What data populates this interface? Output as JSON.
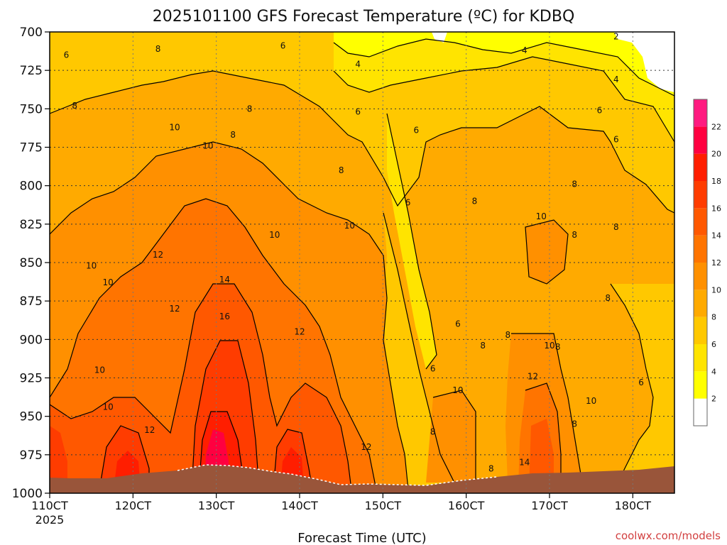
{
  "chart_data": {
    "type": "heatmap",
    "title": "2025101100 GFS Forecast Temperature (ºC) for KDBQ",
    "xlabel": "Forecast Time (UTC)",
    "ylabel": "",
    "credit": "coolwx.com/models",
    "x_ticks": [
      "110CT",
      "120CT",
      "130CT",
      "140CT",
      "150CT",
      "160CT",
      "170CT",
      "180CT"
    ],
    "x_tick_year": "2025",
    "y_ticks": [
      700,
      725,
      750,
      775,
      800,
      825,
      850,
      875,
      900,
      925,
      950,
      975,
      1000
    ],
    "y_range": [
      700,
      1000
    ],
    "x_range_days": [
      11.0,
      18.5
    ],
    "grid": true,
    "colorbar": {
      "ticks": [
        2,
        4,
        6,
        8,
        10,
        12,
        14,
        16,
        18,
        20,
        22
      ],
      "colors": [
        "#ffffff",
        "#ffff00",
        "#ffe400",
        "#ffc800",
        "#ffaa00",
        "#ff9000",
        "#ff7400",
        "#ff5800",
        "#ff3c00",
        "#ff1e00",
        "#ff0040",
        "#ff1a80"
      ]
    },
    "contour_labels": [
      {
        "day": 11.2,
        "p": 715,
        "v": "6"
      },
      {
        "day": 12.3,
        "p": 711,
        "v": "8"
      },
      {
        "day": 13.8,
        "p": 709,
        "v": "6"
      },
      {
        "day": 14.7,
        "p": 721,
        "v": "4"
      },
      {
        "day": 16.7,
        "p": 712,
        "v": "4"
      },
      {
        "day": 17.8,
        "p": 703,
        "v": "2"
      },
      {
        "day": 17.8,
        "p": 731,
        "v": "4"
      },
      {
        "day": 11.3,
        "p": 748,
        "v": "8"
      },
      {
        "day": 12.5,
        "p": 762,
        "v": "10"
      },
      {
        "day": 13.4,
        "p": 750,
        "v": "8"
      },
      {
        "day": 13.2,
        "p": 767,
        "v": "8"
      },
      {
        "day": 12.9,
        "p": 774,
        "v": "10"
      },
      {
        "day": 14.7,
        "p": 752,
        "v": "6"
      },
      {
        "day": 15.4,
        "p": 764,
        "v": "6"
      },
      {
        "day": 17.6,
        "p": 751,
        "v": "6"
      },
      {
        "day": 17.8,
        "p": 770,
        "v": "6"
      },
      {
        "day": 14.5,
        "p": 790,
        "v": "8"
      },
      {
        "day": 15.3,
        "p": 811,
        "v": "6"
      },
      {
        "day": 16.1,
        "p": 810,
        "v": "8"
      },
      {
        "day": 17.3,
        "p": 799,
        "v": "8"
      },
      {
        "day": 16.9,
        "p": 820,
        "v": "10"
      },
      {
        "day": 17.3,
        "p": 832,
        "v": "8"
      },
      {
        "day": 17.8,
        "p": 827,
        "v": "8"
      },
      {
        "day": 13.7,
        "p": 832,
        "v": "10"
      },
      {
        "day": 14.6,
        "p": 826,
        "v": "10"
      },
      {
        "day": 12.3,
        "p": 845,
        "v": "12"
      },
      {
        "day": 11.5,
        "p": 852,
        "v": "10"
      },
      {
        "day": 11.7,
        "p": 863,
        "v": "10"
      },
      {
        "day": 12.5,
        "p": 880,
        "v": "12"
      },
      {
        "day": 13.1,
        "p": 861,
        "v": "14"
      },
      {
        "day": 13.1,
        "p": 885,
        "v": "16"
      },
      {
        "day": 14.0,
        "p": 895,
        "v": "12"
      },
      {
        "day": 15.9,
        "p": 890,
        "v": "6"
      },
      {
        "day": 16.5,
        "p": 897,
        "v": "8"
      },
      {
        "day": 16.2,
        "p": 904,
        "v": "8"
      },
      {
        "day": 17.0,
        "p": 904,
        "v": "10"
      },
      {
        "day": 17.1,
        "p": 905,
        "v": "8"
      },
      {
        "day": 17.7,
        "p": 873,
        "v": "8"
      },
      {
        "day": 11.6,
        "p": 920,
        "v": "10"
      },
      {
        "day": 11.7,
        "p": 944,
        "v": "10"
      },
      {
        "day": 12.2,
        "p": 959,
        "v": "12"
      },
      {
        "day": 15.6,
        "p": 919,
        "v": "6"
      },
      {
        "day": 15.9,
        "p": 933,
        "v": "10"
      },
      {
        "day": 16.8,
        "p": 924,
        "v": "12"
      },
      {
        "day": 17.5,
        "p": 940,
        "v": "10"
      },
      {
        "day": 17.3,
        "p": 955,
        "v": "8"
      },
      {
        "day": 18.1,
        "p": 928,
        "v": "6"
      },
      {
        "day": 15.6,
        "p": 960,
        "v": "8"
      },
      {
        "day": 14.8,
        "p": 970,
        "v": "12"
      },
      {
        "day": 16.3,
        "p": 984,
        "v": "8"
      },
      {
        "day": 16.7,
        "p": 980,
        "v": "14"
      }
    ]
  }
}
